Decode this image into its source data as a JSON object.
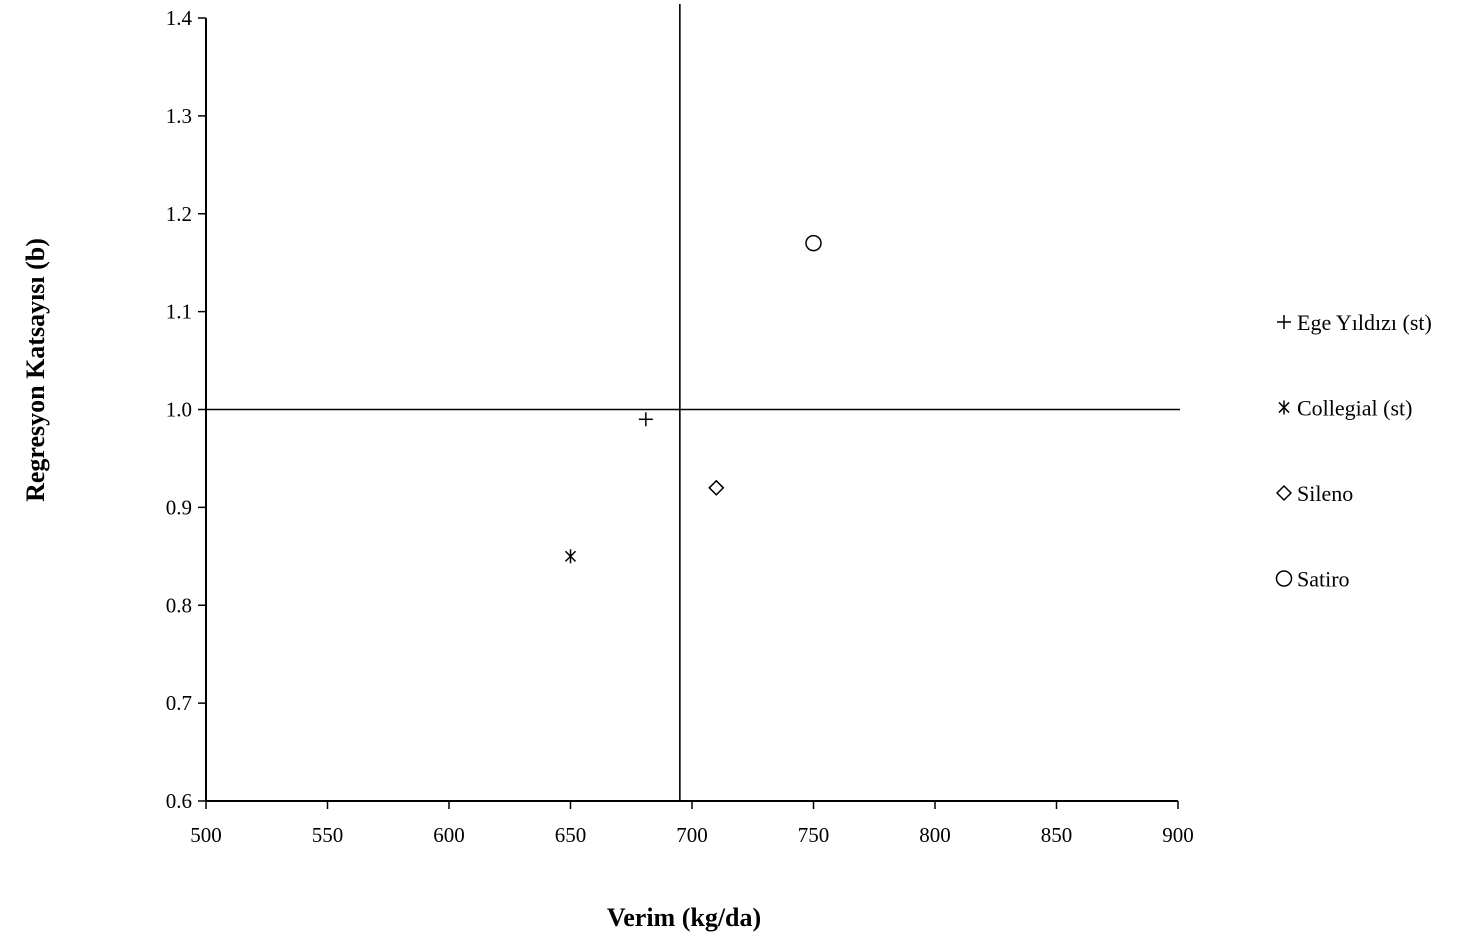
{
  "chart_data": {
    "type": "scatter",
    "xlabel": "Verim (kg/da)",
    "ylabel": "Regresyon Katsayısı (b)",
    "xlim": [
      500,
      900
    ],
    "ylim": [
      0.6,
      1.4
    ],
    "x_ticks": [
      500,
      550,
      600,
      650,
      700,
      750,
      800,
      850,
      900
    ],
    "x_tick_labels": [
      "500",
      "550",
      "600",
      "650",
      "700",
      "750",
      "800",
      "850",
      "900"
    ],
    "y_ticks": [
      0.6,
      0.7,
      0.8,
      0.9,
      1.0,
      1.1,
      1.2,
      1.3,
      1.4
    ],
    "y_tick_labels": [
      "0.6",
      "0.7",
      "0.8",
      "0.9",
      "1.0",
      "1.1",
      "1.2",
      "1.3",
      "1.4"
    ],
    "reference_lines": {
      "horizontal_y": 1.0,
      "vertical_x": 695
    },
    "grid": false,
    "legend_position": "right",
    "series": [
      {
        "name": "Ege Yıldızı (st)",
        "marker": "plus",
        "x": [
          681
        ],
        "y": [
          0.99
        ]
      },
      {
        "name": "Collegial (st)",
        "marker": "asterisk",
        "x": [
          650
        ],
        "y": [
          0.85
        ]
      },
      {
        "name": "Sileno",
        "marker": "diamond",
        "x": [
          710
        ],
        "y": [
          0.92
        ]
      },
      {
        "name": "Satiro",
        "marker": "circle",
        "x": [
          750
        ],
        "y": [
          1.17
        ]
      }
    ],
    "colors": {
      "axis": "#000000",
      "markers": "#000000"
    }
  }
}
